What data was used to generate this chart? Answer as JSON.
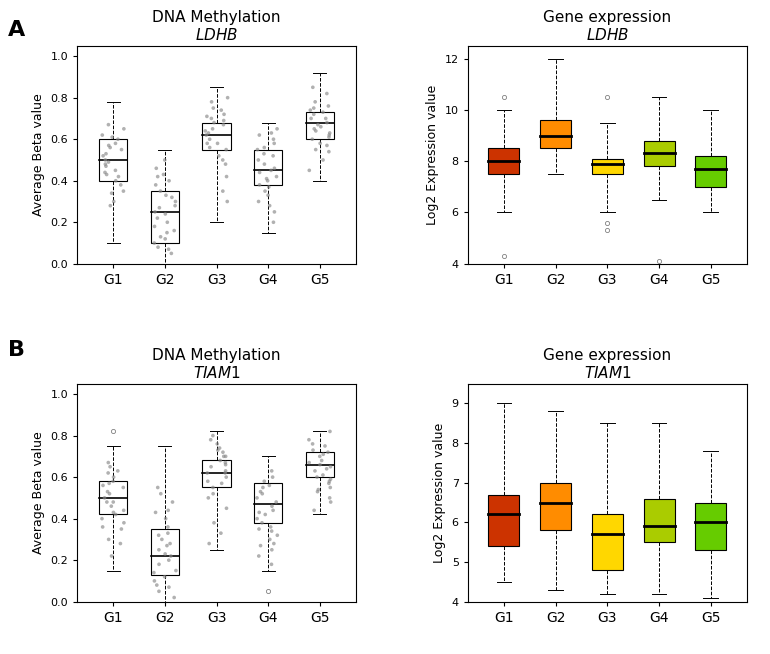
{
  "panel_A_label": "A",
  "panel_B_label": "B",
  "groups": [
    "G1",
    "G2",
    "G3",
    "G4",
    "G5"
  ],
  "box_colors": [
    "#CC3300",
    "#FF8C00",
    "#FFD700",
    "#AACC00",
    "#66CC00"
  ],
  "methyl_LDHB": {
    "title_line1": "DNA Methylation",
    "title_line2": "LDHB",
    "ylabel": "Average Beta value",
    "ylim": [
      0.0,
      1.05
    ],
    "yticks": [
      0.0,
      0.2,
      0.4,
      0.6,
      0.8,
      1.0
    ],
    "groups_data": {
      "G1": {
        "q1": 0.4,
        "median": 0.5,
        "q3": 0.6,
        "whislo": 0.1,
        "whishi": 0.78
      },
      "G2": {
        "q1": 0.1,
        "median": 0.25,
        "q3": 0.35,
        "whislo": 0.0,
        "whishi": 0.55
      },
      "G3": {
        "q1": 0.55,
        "median": 0.62,
        "q3": 0.68,
        "whislo": 0.2,
        "whishi": 0.85
      },
      "G4": {
        "q1": 0.38,
        "median": 0.45,
        "q3": 0.55,
        "whislo": 0.15,
        "whishi": 0.68
      },
      "G5": {
        "q1": 0.6,
        "median": 0.68,
        "q3": 0.73,
        "whislo": 0.4,
        "whishi": 0.92
      }
    },
    "scatter_data": {
      "G1": [
        0.28,
        0.35,
        0.42,
        0.45,
        0.48,
        0.5,
        0.52,
        0.55,
        0.58,
        0.6,
        0.62,
        0.65,
        0.38,
        0.43,
        0.47,
        0.53,
        0.57,
        0.3,
        0.34,
        0.67,
        0.4,
        0.44,
        0.49,
        0.56,
        0.61
      ],
      "G2": [
        0.05,
        0.08,
        0.12,
        0.15,
        0.18,
        0.2,
        0.22,
        0.25,
        0.28,
        0.3,
        0.32,
        0.35,
        0.38,
        0.4,
        0.43,
        0.46,
        0.5,
        0.1,
        0.16,
        0.27,
        0.07,
        0.13,
        0.24,
        0.33,
        0.42
      ],
      "G3": [
        0.3,
        0.35,
        0.42,
        0.48,
        0.52,
        0.55,
        0.58,
        0.6,
        0.62,
        0.65,
        0.68,
        0.7,
        0.72,
        0.75,
        0.78,
        0.58,
        0.63,
        0.67,
        0.71,
        0.8,
        0.5,
        0.56,
        0.64,
        0.69,
        0.74
      ],
      "G4": [
        0.2,
        0.25,
        0.3,
        0.35,
        0.38,
        0.42,
        0.45,
        0.48,
        0.5,
        0.53,
        0.56,
        0.6,
        0.63,
        0.65,
        0.4,
        0.44,
        0.52,
        0.58,
        0.28,
        0.46,
        0.33,
        0.37,
        0.41,
        0.55,
        0.62
      ],
      "G5": [
        0.45,
        0.5,
        0.55,
        0.58,
        0.62,
        0.65,
        0.67,
        0.7,
        0.72,
        0.74,
        0.78,
        0.6,
        0.63,
        0.68,
        0.73,
        0.76,
        0.82,
        0.85,
        0.54,
        0.66,
        0.57,
        0.61,
        0.64,
        0.7,
        0.75
      ]
    }
  },
  "expr_LDHB": {
    "title_line1": "Gene expression",
    "title_line2": "LDHB",
    "ylabel": "Log2 Expression value",
    "ylim": [
      4.0,
      12.5
    ],
    "yticks": [
      4,
      6,
      8,
      10,
      12
    ],
    "groups_data": {
      "G1": {
        "q1": 7.5,
        "median": 8.0,
        "q3": 8.5,
        "whislo": 6.0,
        "whishi": 10.0,
        "fliers": [
          4.3,
          10.5
        ]
      },
      "G2": {
        "q1": 8.5,
        "median": 9.0,
        "q3": 9.6,
        "whislo": 7.5,
        "whishi": 12.0,
        "fliers": []
      },
      "G3": {
        "q1": 7.5,
        "median": 7.9,
        "q3": 8.1,
        "whislo": 6.0,
        "whishi": 9.5,
        "fliers": [
          5.3,
          5.6,
          10.5
        ]
      },
      "G4": {
        "q1": 7.8,
        "median": 8.3,
        "q3": 8.8,
        "whislo": 6.5,
        "whishi": 10.5,
        "fliers": [
          4.1
        ]
      },
      "G5": {
        "q1": 7.0,
        "median": 7.7,
        "q3": 8.2,
        "whislo": 6.0,
        "whishi": 10.0,
        "fliers": []
      }
    }
  },
  "methyl_TIAM1": {
    "title_line1": "DNA Methylation",
    "title_line2": "TIAM1",
    "ylabel": "Average Beta value",
    "ylim": [
      0.0,
      1.05
    ],
    "yticks": [
      0.0,
      0.2,
      0.4,
      0.6,
      0.8,
      1.0
    ],
    "groups_data": {
      "G1": {
        "q1": 0.42,
        "median": 0.5,
        "q3": 0.58,
        "whislo": 0.15,
        "whishi": 0.75,
        "flier_high": 0.82
      },
      "G2": {
        "q1": 0.13,
        "median": 0.22,
        "q3": 0.35,
        "whislo": 0.0,
        "whishi": 0.75,
        "flier_high": null
      },
      "G3": {
        "q1": 0.55,
        "median": 0.62,
        "q3": 0.68,
        "whislo": 0.25,
        "whishi": 0.82,
        "flier_high": null
      },
      "G4": {
        "q1": 0.38,
        "median": 0.47,
        "q3": 0.57,
        "whislo": 0.15,
        "whishi": 0.7,
        "flier_high": null,
        "flier_low": 0.05
      },
      "G5": {
        "q1": 0.6,
        "median": 0.66,
        "q3": 0.72,
        "whislo": 0.42,
        "whishi": 0.82,
        "flier_high": null
      }
    },
    "scatter_data": {
      "G1": [
        0.22,
        0.28,
        0.35,
        0.4,
        0.43,
        0.46,
        0.48,
        0.5,
        0.52,
        0.55,
        0.57,
        0.6,
        0.63,
        0.65,
        0.38,
        0.44,
        0.53,
        0.58,
        0.3,
        0.67,
        0.36,
        0.42,
        0.48,
        0.56,
        0.62
      ],
      "G2": [
        0.02,
        0.05,
        0.08,
        0.12,
        0.15,
        0.18,
        0.2,
        0.22,
        0.25,
        0.28,
        0.3,
        0.33,
        0.36,
        0.4,
        0.43,
        0.48,
        0.52,
        0.55,
        0.1,
        0.27,
        0.07,
        0.14,
        0.23,
        0.32,
        0.44
      ],
      "G3": [
        0.28,
        0.33,
        0.38,
        0.45,
        0.5,
        0.55,
        0.58,
        0.6,
        0.62,
        0.65,
        0.68,
        0.7,
        0.73,
        0.76,
        0.78,
        0.62,
        0.66,
        0.7,
        0.74,
        0.8,
        0.52,
        0.57,
        0.63,
        0.67,
        0.72
      ],
      "G4": [
        0.18,
        0.22,
        0.27,
        0.32,
        0.36,
        0.4,
        0.43,
        0.46,
        0.5,
        0.53,
        0.56,
        0.6,
        0.63,
        0.38,
        0.44,
        0.52,
        0.58,
        0.28,
        0.34,
        0.48,
        0.25,
        0.3,
        0.35,
        0.42,
        0.55
      ],
      "G5": [
        0.44,
        0.48,
        0.53,
        0.57,
        0.61,
        0.64,
        0.66,
        0.68,
        0.7,
        0.73,
        0.75,
        0.63,
        0.67,
        0.71,
        0.76,
        0.82,
        0.55,
        0.58,
        0.6,
        0.78,
        0.5,
        0.54,
        0.59,
        0.65,
        0.72
      ]
    }
  },
  "expr_TIAM1": {
    "title_line1": "Gene expression",
    "title_line2": "TIAM1",
    "ylabel": "Log2 Expression value",
    "ylim": [
      4.0,
      9.5
    ],
    "yticks": [
      4,
      5,
      6,
      7,
      8,
      9
    ],
    "groups_data": {
      "G1": {
        "q1": 5.4,
        "median": 6.2,
        "q3": 6.7,
        "whislo": 4.5,
        "whishi": 9.0,
        "fliers": []
      },
      "G2": {
        "q1": 5.8,
        "median": 6.5,
        "q3": 7.0,
        "whislo": 4.3,
        "whishi": 8.8,
        "fliers": []
      },
      "G3": {
        "q1": 4.8,
        "median": 5.7,
        "q3": 6.2,
        "whislo": 4.2,
        "whishi": 8.5,
        "fliers": []
      },
      "G4": {
        "q1": 5.5,
        "median": 5.9,
        "q3": 6.6,
        "whislo": 4.2,
        "whishi": 8.5,
        "fliers": []
      },
      "G5": {
        "q1": 5.3,
        "median": 6.0,
        "q3": 6.5,
        "whislo": 4.1,
        "whishi": 7.8,
        "fliers": []
      }
    }
  }
}
